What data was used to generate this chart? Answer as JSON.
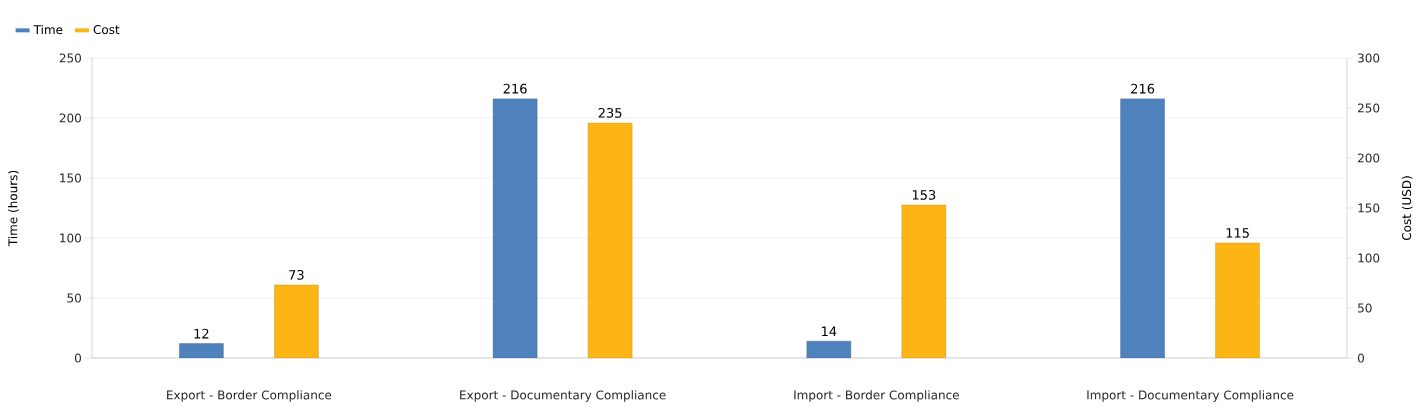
{
  "chart_data": {
    "type": "bar",
    "categories": [
      "Export - Border Compliance",
      "Export - Documentary Compliance",
      "Import - Border Compliance",
      "Import - Documentary Compliance"
    ],
    "series": [
      {
        "name": "Time",
        "color": "#4f81bd",
        "values": [
          12,
          216,
          14,
          216
        ]
      },
      {
        "name": "Cost",
        "color": "#fdb515",
        "values": [
          73,
          235,
          153,
          115
        ],
        "axis": "y2"
      }
    ],
    "ylabel": "Time (hours)",
    "y2label": "Cost (USD)",
    "ylim": [
      0,
      250
    ],
    "yticks": [
      0,
      50,
      100,
      150,
      200,
      250
    ],
    "y2lim": [
      0,
      300
    ],
    "y2ticks": [
      0,
      50,
      100,
      150,
      200,
      250,
      300
    ],
    "grid": "y",
    "legend": "top left",
    "data_labels": true
  }
}
